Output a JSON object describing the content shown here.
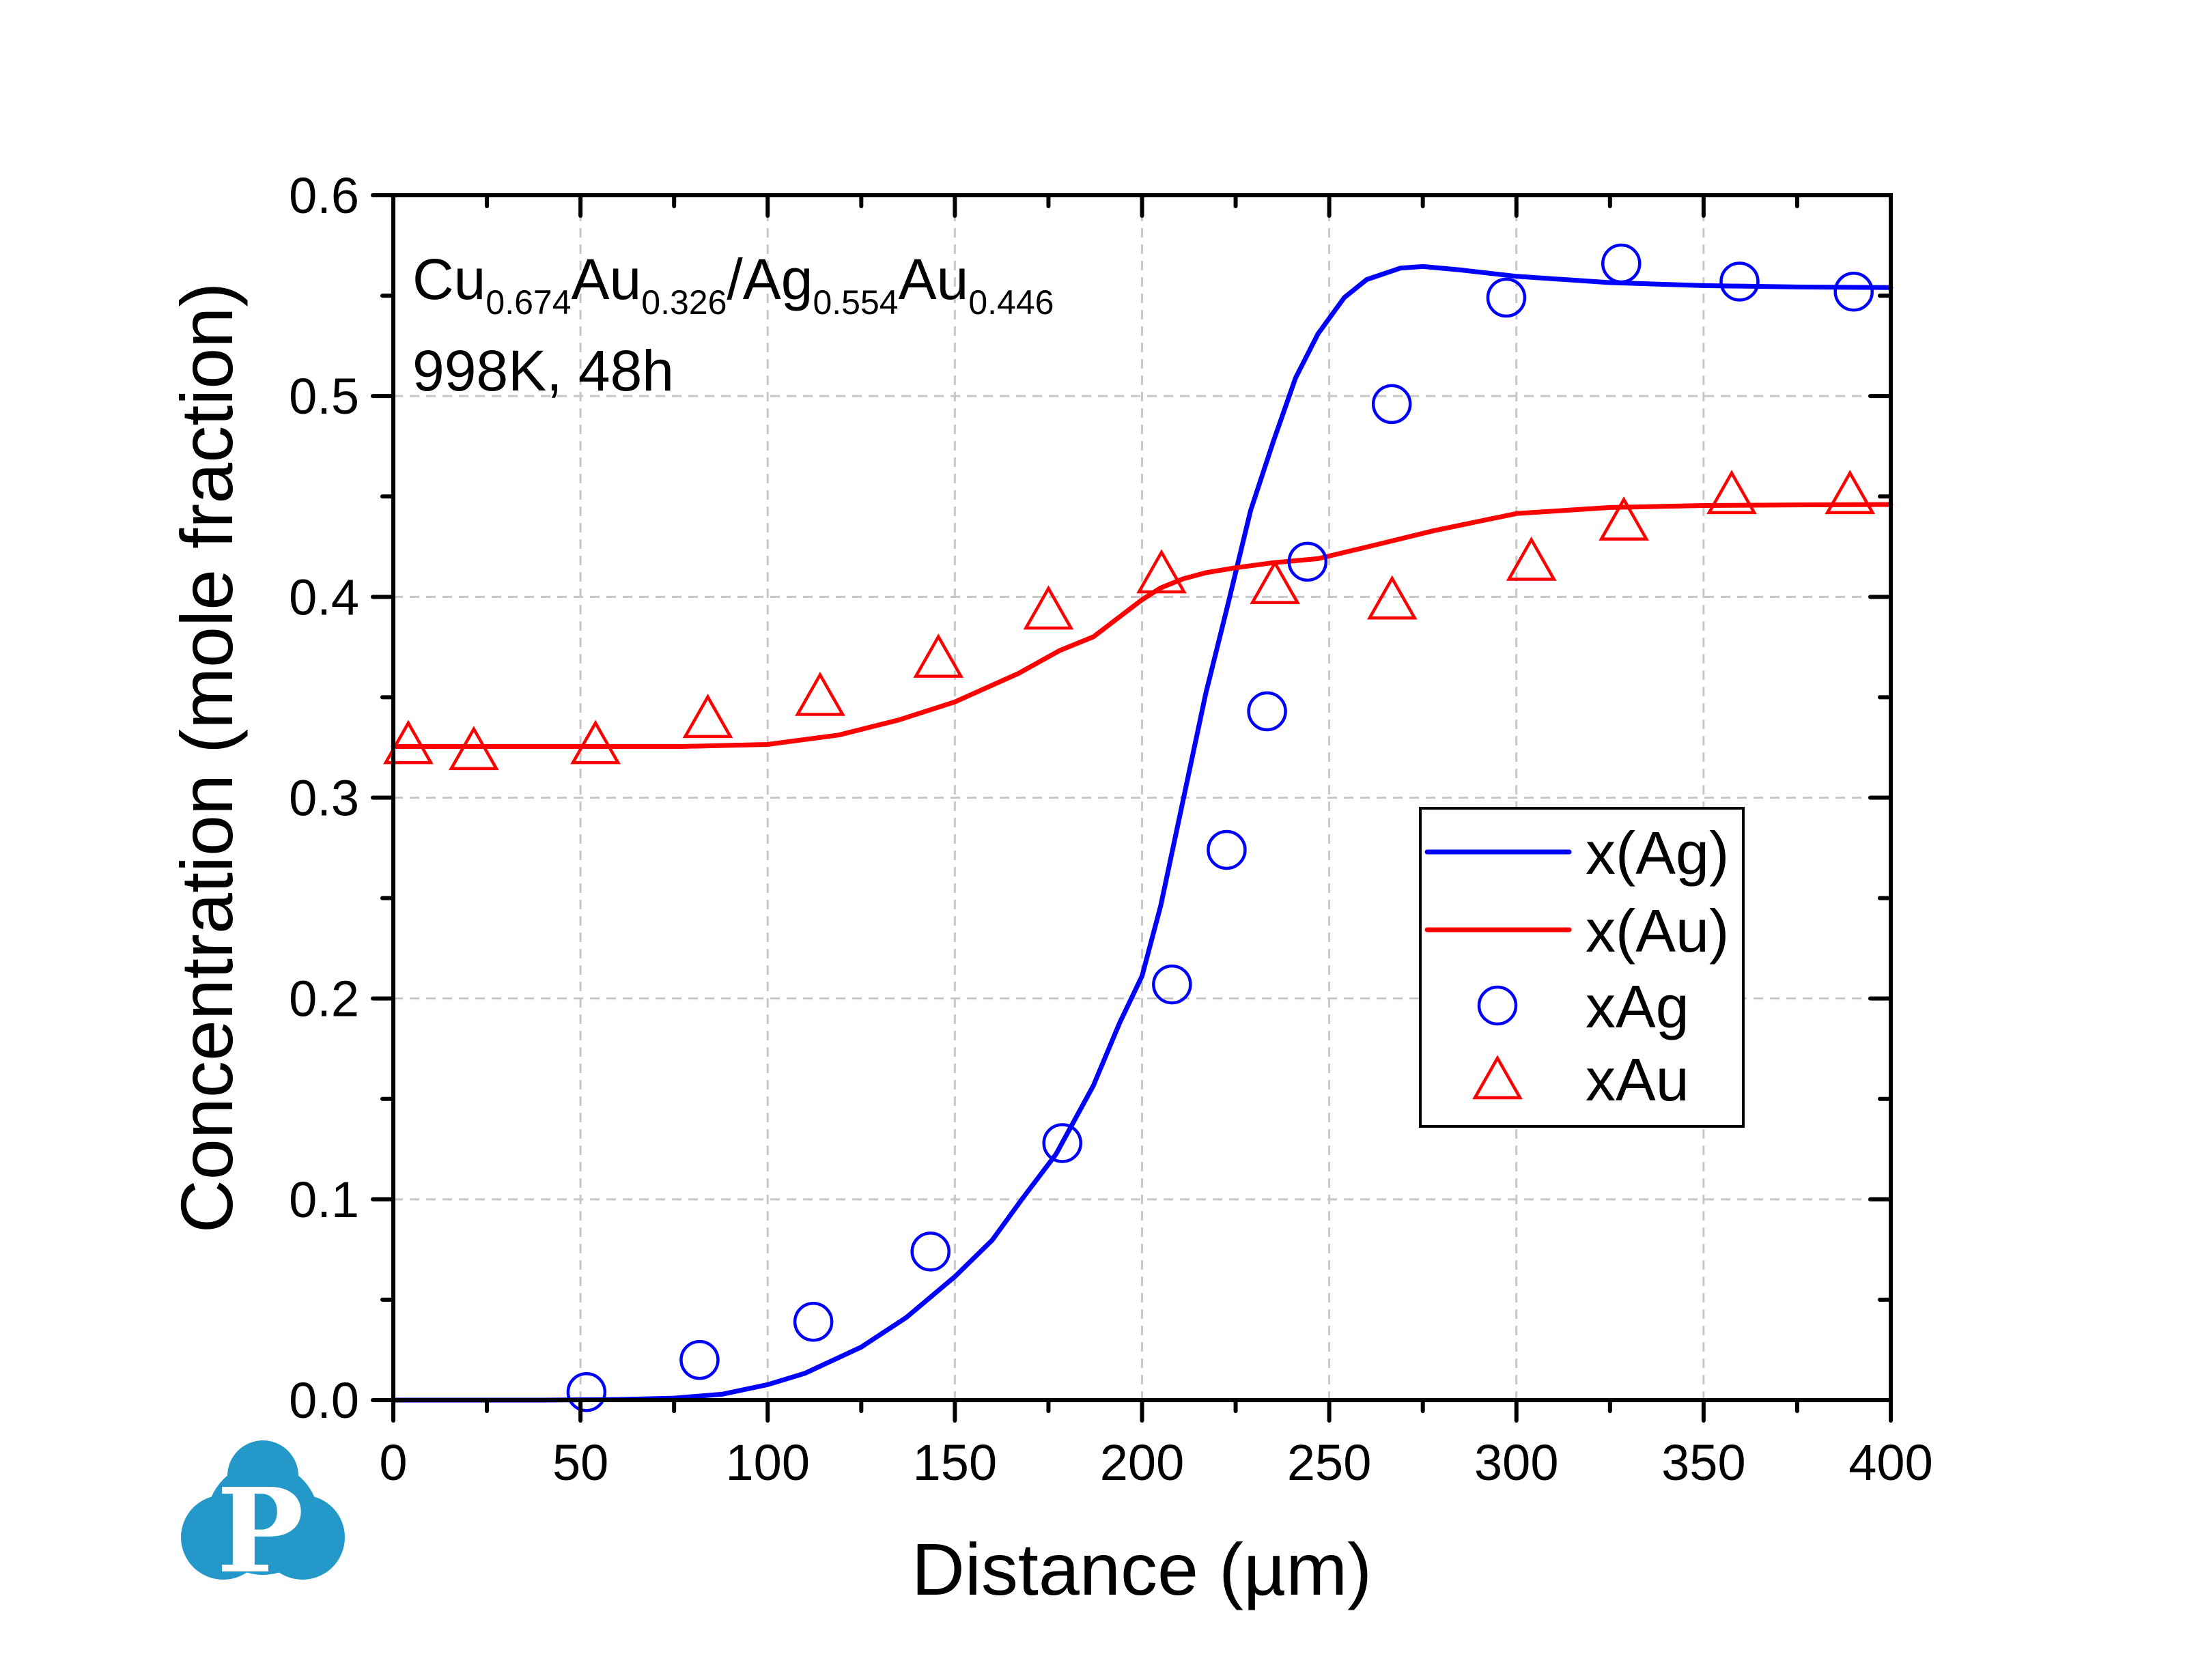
{
  "chart_data": {
    "type": "line",
    "title": "",
    "xlabel": "Distance (µm)",
    "ylabel": "Concentration (mole fraction)",
    "xlim": [
      0,
      400
    ],
    "ylim": [
      0,
      0.6
    ],
    "x_ticks": [
      0,
      50,
      100,
      150,
      200,
      250,
      300,
      350,
      400
    ],
    "x_tick_labels": [
      "0",
      "50",
      "100",
      "150",
      "200",
      "250",
      "300",
      "350",
      "400"
    ],
    "x_minor_step": 25,
    "y_ticks": [
      0.0,
      0.1,
      0.2,
      0.3,
      0.4,
      0.5,
      0.6
    ],
    "y_tick_labels": [
      "0.0",
      "0.1",
      "0.2",
      "0.3",
      "0.4",
      "0.5",
      "0.6"
    ],
    "y_minor_step": 0.05,
    "grid": true,
    "legend_position": "center-right",
    "annotations": [
      {
        "parts": [
          {
            "text": "Cu",
            "sub": false
          },
          {
            "text": "0.674",
            "sub": true
          },
          {
            "text": "Au",
            "sub": false
          },
          {
            "text": "0.326",
            "sub": true
          },
          {
            "text": "/Ag",
            "sub": false
          },
          {
            "text": "0.554",
            "sub": true
          },
          {
            "text": "Au",
            "sub": false
          },
          {
            "text": "0.446",
            "sub": true
          }
        ]
      },
      {
        "parts": [
          {
            "text": "998K, 48h",
            "sub": false
          }
        ]
      }
    ],
    "series": [
      {
        "name": "x(Ag)",
        "kind": "line",
        "color": "#0000ff",
        "x": [
          0,
          40,
          60,
          75,
          88,
          100,
          110,
          125,
          137,
          150,
          160,
          168,
          177,
          187,
          194,
          200,
          205,
          211,
          217,
          223,
          229,
          235,
          241,
          247,
          254,
          260,
          269,
          275,
          285,
          300,
          325,
          350,
          375,
          400
        ],
        "y": [
          0.0,
          0.0,
          0.0003,
          0.001,
          0.003,
          0.0077,
          0.0134,
          0.0264,
          0.0411,
          0.0615,
          0.0797,
          0.1003,
          0.1224,
          0.1566,
          0.1878,
          0.2112,
          0.2463,
          0.299,
          0.3517,
          0.3967,
          0.443,
          0.477,
          0.509,
          0.531,
          0.549,
          0.558,
          0.5637,
          0.5645,
          0.5628,
          0.5596,
          0.5565,
          0.555,
          0.5543,
          0.554
        ]
      },
      {
        "name": "x(Au)",
        "kind": "line",
        "color": "#ff0000",
        "x": [
          0,
          40,
          77,
          100,
          119,
          135,
          150,
          167,
          178,
          187,
          200,
          205,
          211,
          217,
          225,
          235,
          247,
          260,
          278,
          300,
          325,
          350,
          375,
          400
        ],
        "y": [
          0.3255,
          0.3255,
          0.3255,
          0.3265,
          0.3312,
          0.3387,
          0.3477,
          0.3619,
          0.3733,
          0.3801,
          0.3986,
          0.4045,
          0.409,
          0.412,
          0.4145,
          0.417,
          0.419,
          0.4248,
          0.433,
          0.4415,
          0.4445,
          0.4455,
          0.4458,
          0.446
        ]
      },
      {
        "name": "xAg",
        "kind": "scatter",
        "marker": "circle-open",
        "color": "#0000ff",
        "x": [
          51.6,
          81.8,
          112.2,
          143.5,
          178.7,
          208.0,
          222.6,
          233.4,
          244.2,
          266.7,
          297.3,
          328.0,
          359.6,
          390.1
        ],
        "y": [
          0.004,
          0.02,
          0.039,
          0.074,
          0.128,
          0.207,
          0.274,
          0.343,
          0.4175,
          0.496,
          0.549,
          0.566,
          0.557,
          0.552
        ]
      },
      {
        "name": "xAu",
        "kind": "scatter",
        "marker": "triangle-open",
        "color": "#ff0000",
        "x": [
          4.0,
          21.5,
          54.0,
          84.0,
          114.0,
          145.6,
          175.0,
          205.2,
          235.5,
          266.8,
          304.0,
          328.7,
          357.5,
          389.1
        ],
        "y": [
          0.327,
          0.324,
          0.327,
          0.34,
          0.351,
          0.37,
          0.394,
          0.412,
          0.4067,
          0.399,
          0.4183,
          0.4383,
          0.4515,
          0.4515
        ]
      }
    ]
  },
  "logo": {
    "icon": "p-cloud-logo-icon",
    "letter": "P",
    "color": "#2499c9"
  }
}
